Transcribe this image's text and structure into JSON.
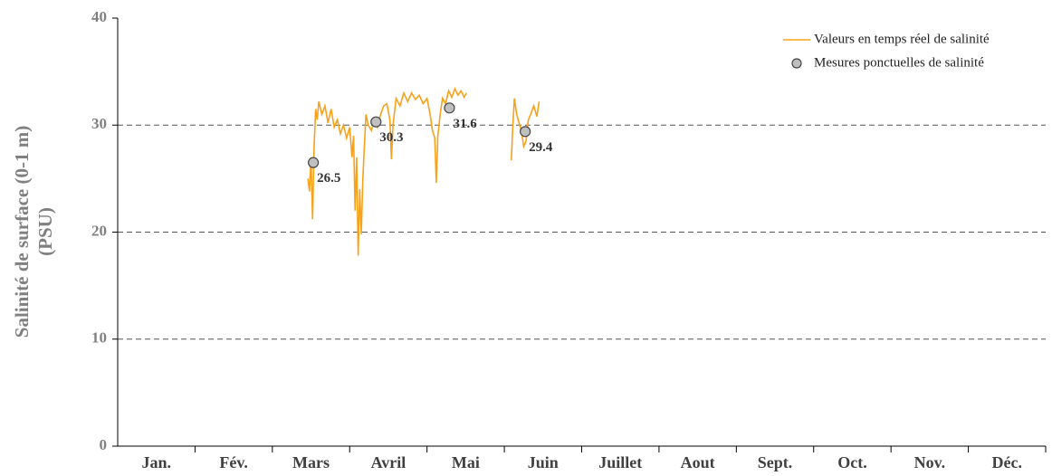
{
  "chart_data": {
    "type": "line",
    "ylabel": [
      "Salinité de surface (0-1 m)",
      "(PSU)"
    ],
    "categories": [
      "Jan.",
      "Fév.",
      "Mars",
      "Avril",
      "Mai",
      "Juin",
      "Juillet",
      "Aout",
      "Sept.",
      "Oct.",
      "Nov.",
      "Déc."
    ],
    "xlim": [
      0,
      12
    ],
    "ylim": [
      0,
      40
    ],
    "yticks": [
      0,
      10,
      20,
      30,
      40
    ],
    "grid": true,
    "legend": "upper right",
    "series": [
      {
        "name": "Valeurs en temps réel de salinité",
        "color": "#f7a21b",
        "kind": "line",
        "x": [
          2.46,
          2.48,
          2.5,
          2.52,
          2.54,
          2.56,
          2.58,
          2.6,
          2.64,
          2.68,
          2.72,
          2.76,
          2.8,
          2.84,
          2.88,
          2.92,
          2.96,
          3.0,
          3.03,
          3.05,
          3.07,
          3.09,
          3.11,
          3.13,
          3.15,
          3.17,
          3.19,
          3.21,
          3.24,
          3.28,
          3.32,
          3.36,
          3.4,
          3.44,
          3.48,
          3.52,
          3.54,
          3.56,
          3.6,
          3.65,
          3.7,
          3.75,
          3.8,
          3.85,
          3.9,
          3.95,
          4.0,
          4.04,
          4.07,
          4.1,
          4.12,
          4.14,
          4.17,
          4.2,
          4.24,
          4.28,
          4.32,
          4.36,
          4.4,
          4.44,
          4.48,
          4.51,
          4.8,
          5.09,
          5.11,
          5.13,
          5.16,
          5.19,
          5.22,
          5.25,
          5.28,
          5.31,
          5.34,
          5.38,
          5.42,
          5.45
        ],
        "values": [
          25,
          23.8,
          27,
          21.2,
          28,
          31.5,
          30.5,
          32.2,
          31,
          31.8,
          30.2,
          31.5,
          29.8,
          30.5,
          29.2,
          30,
          28.8,
          29.8,
          27,
          29,
          22,
          27,
          17.8,
          24,
          19.8,
          25,
          28,
          31,
          30,
          29.5,
          30.5,
          29.8,
          31,
          31.8,
          32,
          30.5,
          26.8,
          30,
          32.5,
          31.8,
          33,
          32.2,
          33,
          32.4,
          32.8,
          32,
          32.5,
          31,
          29.5,
          28.8,
          24.6,
          29,
          31,
          32.5,
          32,
          33.2,
          32.6,
          33.4,
          32.8,
          33.2,
          32.6,
          33,
          null,
          26.7,
          30,
          32.5,
          31,
          30.2,
          29.5,
          28,
          28.5,
          30.5,
          31,
          31.8,
          30.8,
          32.2
        ]
      },
      {
        "name": "Mesures ponctuelles de salinité",
        "color": "#c0c0c0",
        "kind": "scatter",
        "x": [
          2.53,
          3.34,
          4.29,
          5.27
        ],
        "values": [
          26.5,
          30.3,
          31.6,
          29.4
        ]
      }
    ]
  }
}
